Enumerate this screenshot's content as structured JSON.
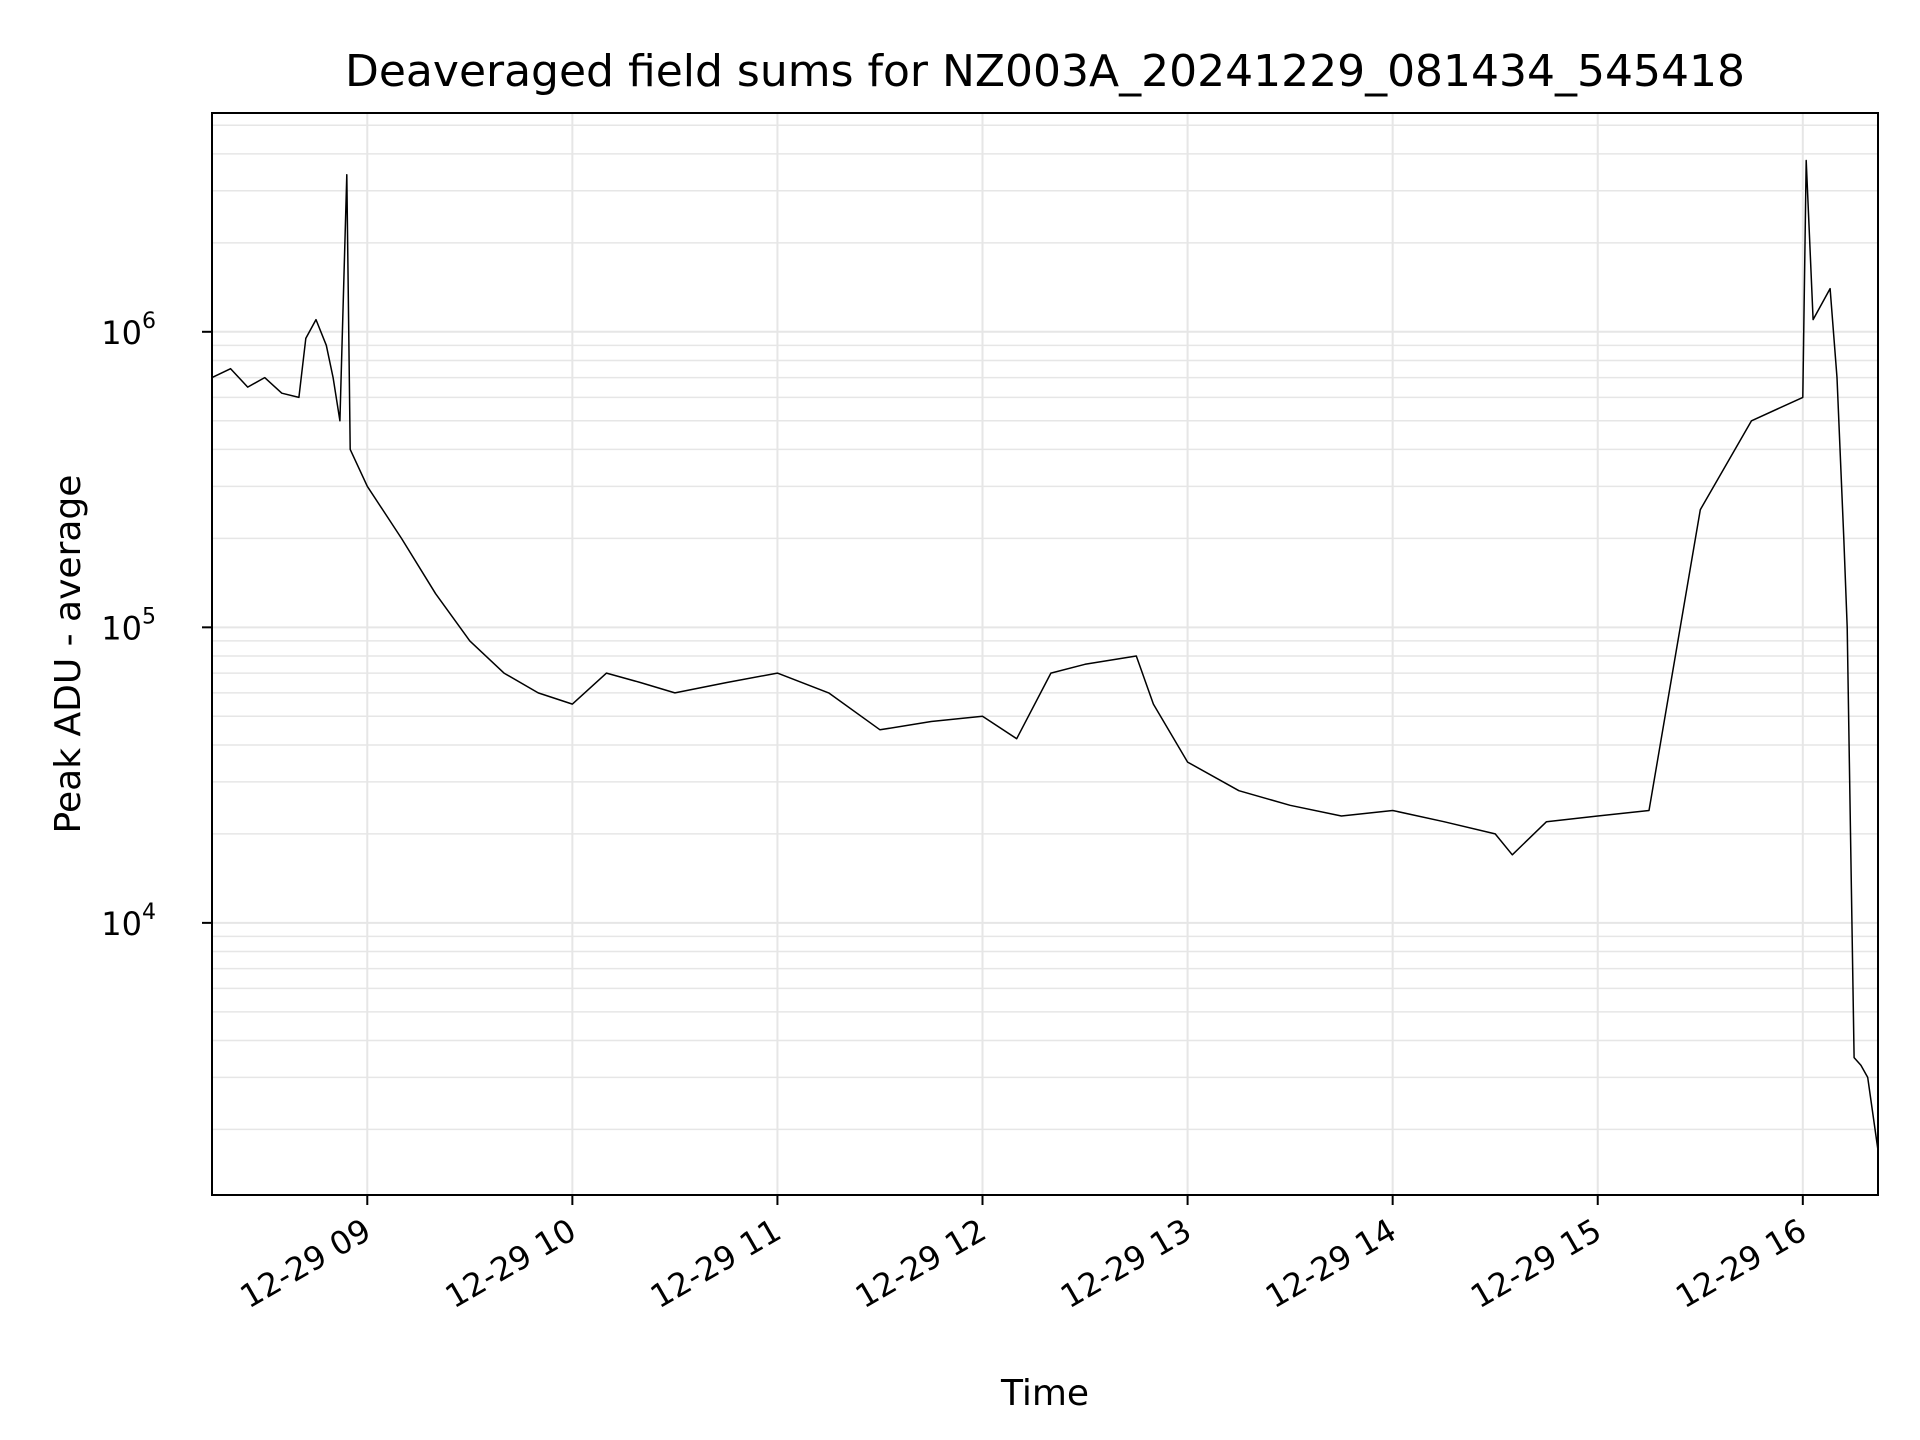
{
  "chart_data": {
    "type": "line",
    "title": "Deaveraged field sums for NZ003A_20241229_081434_545418",
    "xlabel": "Time",
    "ylabel": "Peak ADU - average",
    "yscale": "log",
    "xlim": [
      "2024-12-29 08:14:34",
      "2024-12-29 16:22:00"
    ],
    "ylim": [
      1200,
      5500000
    ],
    "grid": true,
    "x_ticks": [
      {
        "value": "2024-12-29 09:00",
        "label": "12-29 09"
      },
      {
        "value": "2024-12-29 10:00",
        "label": "12-29 10"
      },
      {
        "value": "2024-12-29 11:00",
        "label": "12-29 11"
      },
      {
        "value": "2024-12-29 12:00",
        "label": "12-29 12"
      },
      {
        "value": "2024-12-29 13:00",
        "label": "12-29 13"
      },
      {
        "value": "2024-12-29 14:00",
        "label": "12-29 14"
      },
      {
        "value": "2024-12-29 15:00",
        "label": "12-29 15"
      },
      {
        "value": "2024-12-29 16:00",
        "label": "12-29 16"
      }
    ],
    "y_ticks": [
      {
        "value": 10000,
        "base": "10",
        "exp": "4"
      },
      {
        "value": 100000,
        "base": "10",
        "exp": "5"
      },
      {
        "value": 1000000,
        "base": "10",
        "exp": "6"
      }
    ],
    "series": [
      {
        "color": "#000000",
        "points": [
          [
            "2024-12-29 08:14:34",
            700000
          ],
          [
            "2024-12-29 08:20",
            750000
          ],
          [
            "2024-12-29 08:25",
            650000
          ],
          [
            "2024-12-29 08:30",
            700000
          ],
          [
            "2024-12-29 08:35",
            620000
          ],
          [
            "2024-12-29 08:40",
            600000
          ],
          [
            "2024-12-29 08:42",
            950000
          ],
          [
            "2024-12-29 08:45",
            1100000
          ],
          [
            "2024-12-29 08:48",
            900000
          ],
          [
            "2024-12-29 08:50",
            700000
          ],
          [
            "2024-12-29 08:52",
            500000
          ],
          [
            "2024-12-29 08:54",
            3400000
          ],
          [
            "2024-12-29 08:55",
            400000
          ],
          [
            "2024-12-29 09:00",
            300000
          ],
          [
            "2024-12-29 09:10",
            200000
          ],
          [
            "2024-12-29 09:20",
            130000
          ],
          [
            "2024-12-29 09:30",
            90000
          ],
          [
            "2024-12-29 09:40",
            70000
          ],
          [
            "2024-12-29 09:50",
            60000
          ],
          [
            "2024-12-29 10:00",
            55000
          ],
          [
            "2024-12-29 10:10",
            70000
          ],
          [
            "2024-12-29 10:20",
            65000
          ],
          [
            "2024-12-29 10:30",
            60000
          ],
          [
            "2024-12-29 10:45",
            65000
          ],
          [
            "2024-12-29 11:00",
            70000
          ],
          [
            "2024-12-29 11:15",
            60000
          ],
          [
            "2024-12-29 11:30",
            45000
          ],
          [
            "2024-12-29 11:45",
            48000
          ],
          [
            "2024-12-29 12:00",
            50000
          ],
          [
            "2024-12-29 12:10",
            42000
          ],
          [
            "2024-12-29 12:20",
            70000
          ],
          [
            "2024-12-29 12:30",
            75000
          ],
          [
            "2024-12-29 12:45",
            80000
          ],
          [
            "2024-12-29 12:50",
            55000
          ],
          [
            "2024-12-29 13:00",
            35000
          ],
          [
            "2024-12-29 13:15",
            28000
          ],
          [
            "2024-12-29 13:30",
            25000
          ],
          [
            "2024-12-29 13:45",
            23000
          ],
          [
            "2024-12-29 14:00",
            24000
          ],
          [
            "2024-12-29 14:15",
            22000
          ],
          [
            "2024-12-29 14:30",
            20000
          ],
          [
            "2024-12-29 14:35",
            17000
          ],
          [
            "2024-12-29 14:45",
            22000
          ],
          [
            "2024-12-29 15:00",
            23000
          ],
          [
            "2024-12-29 15:15",
            24000
          ],
          [
            "2024-12-29 15:30",
            250000
          ],
          [
            "2024-12-29 15:45",
            500000
          ],
          [
            "2024-12-29 16:00",
            600000
          ],
          [
            "2024-12-29 16:01",
            3800000
          ],
          [
            "2024-12-29 16:03",
            1100000
          ],
          [
            "2024-12-29 16:08",
            1400000
          ],
          [
            "2024-12-29 16:10",
            700000
          ],
          [
            "2024-12-29 16:12",
            200000
          ],
          [
            "2024-12-29 16:13",
            100000
          ],
          [
            "2024-12-29 16:15",
            3500
          ],
          [
            "2024-12-29 16:17",
            3300
          ],
          [
            "2024-12-29 16:19",
            3000
          ],
          [
            "2024-12-29 16:22",
            1700
          ]
        ]
      }
    ]
  }
}
